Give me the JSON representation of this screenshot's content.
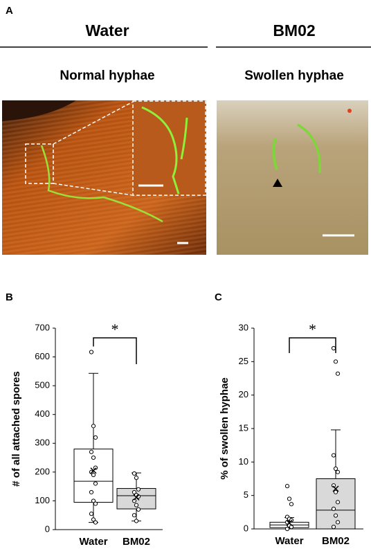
{
  "panel_a": {
    "label": "A",
    "columns": [
      {
        "title": "Water",
        "subtitle": "Normal hyphae"
      },
      {
        "title": "BM02",
        "subtitle": "Swollen hyphae"
      }
    ]
  },
  "chart_data": [
    {
      "type": "box",
      "panel": "B",
      "ylabel": "# of all attached spores",
      "annotation": "*",
      "categories": [
        "Water",
        "BM02"
      ],
      "colors": [
        "#ffffff",
        "#d9d9d9"
      ],
      "ylim": [
        0,
        700
      ],
      "yticks": [
        0,
        100,
        200,
        300,
        400,
        500,
        600,
        700
      ],
      "boxes": [
        {
          "min": 25,
          "q1": 95,
          "median": 168,
          "q3": 280,
          "max": 543,
          "mean": 205,
          "points": [
            617,
            360,
            320,
            270,
            250,
            215,
            200,
            190,
            160,
            130,
            100,
            90,
            55,
            35,
            25
          ]
        },
        {
          "min": 30,
          "q1": 72,
          "median": 118,
          "q3": 143,
          "max": 197,
          "mean": 112,
          "points": [
            195,
            180,
            140,
            130,
            120,
            115,
            100,
            85,
            70,
            50,
            30
          ]
        }
      ]
    },
    {
      "type": "box",
      "panel": "C",
      "ylabel": "% of swollen hyphae",
      "annotation": "*",
      "categories": [
        "Water",
        "BM02"
      ],
      "colors": [
        "#ffffff",
        "#d9d9d9"
      ],
      "ylim": [
        0,
        30
      ],
      "yticks": [
        0,
        5,
        10,
        15,
        20,
        25,
        30
      ],
      "boxes": [
        {
          "min": 0,
          "q1": 0.2,
          "median": 0.6,
          "q3": 1.0,
          "max": 1.7,
          "mean": 0.9,
          "points": [
            6.4,
            4.5,
            3.7,
            1.8,
            1.5,
            1.3,
            1.0,
            0.5,
            0.3,
            0
          ]
        },
        {
          "min": 0,
          "q1": 0,
          "median": 2.8,
          "q3": 7.5,
          "max": 14.8,
          "mean": 6.0,
          "points": [
            27,
            25,
            23.2,
            11,
            9,
            8.5,
            6.5,
            5.5,
            4,
            3,
            2,
            1,
            0.3
          ]
        }
      ]
    }
  ]
}
